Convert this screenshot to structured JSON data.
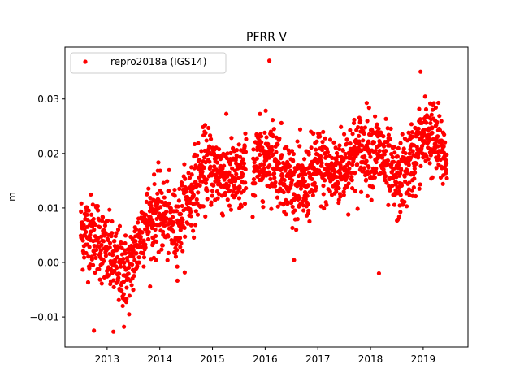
{
  "chart_data": {
    "type": "scatter",
    "title": "PFRR V",
    "xlabel": "",
    "ylabel": "m",
    "xlim": [
      2012.2,
      2019.85
    ],
    "ylim": [
      -0.0155,
      0.0395
    ],
    "x_ticks": [
      2013,
      2014,
      2015,
      2016,
      2017,
      2018,
      2019
    ],
    "x_tick_labels": [
      "2013",
      "2014",
      "2015",
      "2016",
      "2017",
      "2018",
      "2019"
    ],
    "y_ticks": [
      -0.01,
      0.0,
      0.01,
      0.02,
      0.03
    ],
    "y_tick_labels": [
      "−0.01",
      "0.00",
      "0.01",
      "0.02",
      "0.03"
    ],
    "grid": false,
    "legend_position": "top-left",
    "series": [
      {
        "name": "repro2018a (IGS14)",
        "color": "#ff0000",
        "marker": "dot",
        "trend_keys": {
          "x": [
            2012.5,
            2012.8,
            2013.1,
            2013.4,
            2013.7,
            2014.0,
            2014.3,
            2014.6,
            2014.9,
            2015.2,
            2015.5,
            2015.8,
            2016.1,
            2016.4,
            2016.7,
            2017.0,
            2017.3,
            2017.6,
            2017.9,
            2018.2,
            2018.5,
            2018.8,
            2019.1,
            2019.45
          ],
          "y": [
            0.006,
            0.005,
            0.0,
            -0.002,
            0.007,
            0.009,
            0.006,
            0.013,
            0.018,
            0.016,
            0.015,
            0.018,
            0.02,
            0.016,
            0.013,
            0.018,
            0.016,
            0.019,
            0.021,
            0.02,
            0.014,
            0.019,
            0.024,
            0.019
          ]
        },
        "spread": 0.0035,
        "n_points": 1850,
        "notable_points": [
          {
            "x": 2016.08,
            "y": 0.037
          },
          {
            "x": 2018.95,
            "y": 0.035
          },
          {
            "x": 2013.12,
            "y": -0.0127
          },
          {
            "x": 2012.75,
            "y": -0.0125
          },
          {
            "x": 2013.32,
            "y": -0.0118
          },
          {
            "x": 2018.16,
            "y": -0.002
          }
        ]
      }
    ]
  }
}
